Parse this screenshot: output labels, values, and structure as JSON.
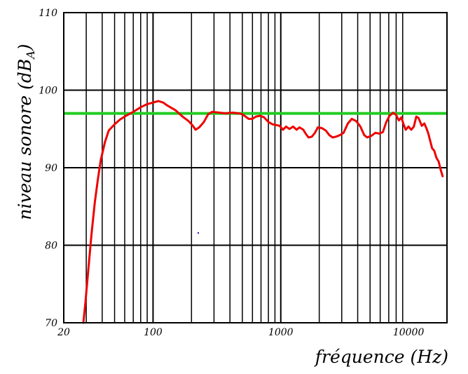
{
  "chart_data": {
    "type": "line",
    "xscale": "log",
    "xlim": [
      20,
      20000
    ],
    "ylim": [
      70,
      110
    ],
    "grid": true,
    "xlabel": "fréquence (Hz)",
    "ylabel_main": "niveau sonore (dB",
    "ylabel_sub": "A",
    "ylabel_close": ")",
    "x_ticks": [
      {
        "value": 20,
        "label": "20"
      },
      {
        "value": 100,
        "label": "100"
      },
      {
        "value": 1000,
        "label": "1000"
      },
      {
        "value": 10000,
        "label": "10000"
      }
    ],
    "y_ticks": [
      {
        "value": 70,
        "label": "70"
      },
      {
        "value": 80,
        "label": "80"
      },
      {
        "value": 90,
        "label": "90"
      },
      {
        "value": 100,
        "label": "100"
      },
      {
        "value": 110,
        "label": "110"
      }
    ],
    "reference_line": {
      "y": 97,
      "color": "#22cc22"
    },
    "series": [
      {
        "color": "#ee0000",
        "points": [
          [
            28.5,
            70
          ],
          [
            29.5,
            72.5
          ],
          [
            31,
            76.5
          ],
          [
            33,
            81.5
          ],
          [
            35,
            85.5
          ],
          [
            37,
            88.5
          ],
          [
            39,
            91
          ],
          [
            42,
            93.3
          ],
          [
            45,
            94.8
          ],
          [
            50,
            95.6
          ],
          [
            55,
            96.2
          ],
          [
            60,
            96.6
          ],
          [
            70,
            97.2
          ],
          [
            80,
            97.8
          ],
          [
            90,
            98.2
          ],
          [
            100,
            98.4
          ],
          [
            110,
            98.6
          ],
          [
            120,
            98.4
          ],
          [
            130,
            98
          ],
          [
            150,
            97.4
          ],
          [
            170,
            96.6
          ],
          [
            190,
            96
          ],
          [
            205,
            95.4
          ],
          [
            215,
            94.9
          ],
          [
            230,
            95.2
          ],
          [
            250,
            95.9
          ],
          [
            270,
            96.9
          ],
          [
            290,
            97.2
          ],
          [
            330,
            97.1
          ],
          [
            370,
            97
          ],
          [
            420,
            97.1
          ],
          [
            470,
            97
          ],
          [
            500,
            96.9
          ],
          [
            530,
            96.6
          ],
          [
            560,
            96.3
          ],
          [
            600,
            96.3
          ],
          [
            640,
            96.6
          ],
          [
            690,
            96.7
          ],
          [
            740,
            96.5
          ],
          [
            800,
            95.9
          ],
          [
            860,
            95.6
          ],
          [
            920,
            95.5
          ],
          [
            980,
            95.4
          ],
          [
            1040,
            94.9
          ],
          [
            1100,
            95.3
          ],
          [
            1170,
            95
          ],
          [
            1250,
            95.3
          ],
          [
            1330,
            94.9
          ],
          [
            1400,
            95.2
          ],
          [
            1500,
            94.9
          ],
          [
            1580,
            94.3
          ],
          [
            1650,
            93.9
          ],
          [
            1750,
            94
          ],
          [
            1850,
            94.5
          ],
          [
            1950,
            95.2
          ],
          [
            2100,
            95.1
          ],
          [
            2250,
            94.8
          ],
          [
            2400,
            94.2
          ],
          [
            2550,
            93.9
          ],
          [
            2700,
            94
          ],
          [
            2900,
            94.2
          ],
          [
            3100,
            94.5
          ],
          [
            3350,
            95.7
          ],
          [
            3600,
            96.3
          ],
          [
            3900,
            96
          ],
          [
            4200,
            95.3
          ],
          [
            4500,
            94.2
          ],
          [
            4750,
            93.9
          ],
          [
            5100,
            94.1
          ],
          [
            5500,
            94.5
          ],
          [
            5900,
            94.4
          ],
          [
            6300,
            94.6
          ],
          [
            6700,
            95.9
          ],
          [
            7100,
            96.7
          ],
          [
            7600,
            97.1
          ],
          [
            8000,
            96.8
          ],
          [
            8400,
            96.1
          ],
          [
            8800,
            96.5
          ],
          [
            9100,
            95.7
          ],
          [
            9500,
            94.9
          ],
          [
            10000,
            95.3
          ],
          [
            10500,
            94.9
          ],
          [
            11000,
            95.3
          ],
          [
            11500,
            96.6
          ],
          [
            12000,
            96.4
          ],
          [
            12700,
            95.4
          ],
          [
            13300,
            95.7
          ],
          [
            13800,
            95.1
          ],
          [
            14300,
            94.4
          ],
          [
            14800,
            93.4
          ],
          [
            15300,
            92.5
          ],
          [
            15900,
            92.2
          ],
          [
            16500,
            91.3
          ],
          [
            17200,
            90.8
          ],
          [
            17800,
            89.8
          ],
          [
            18500,
            88.9
          ]
        ]
      }
    ]
  }
}
